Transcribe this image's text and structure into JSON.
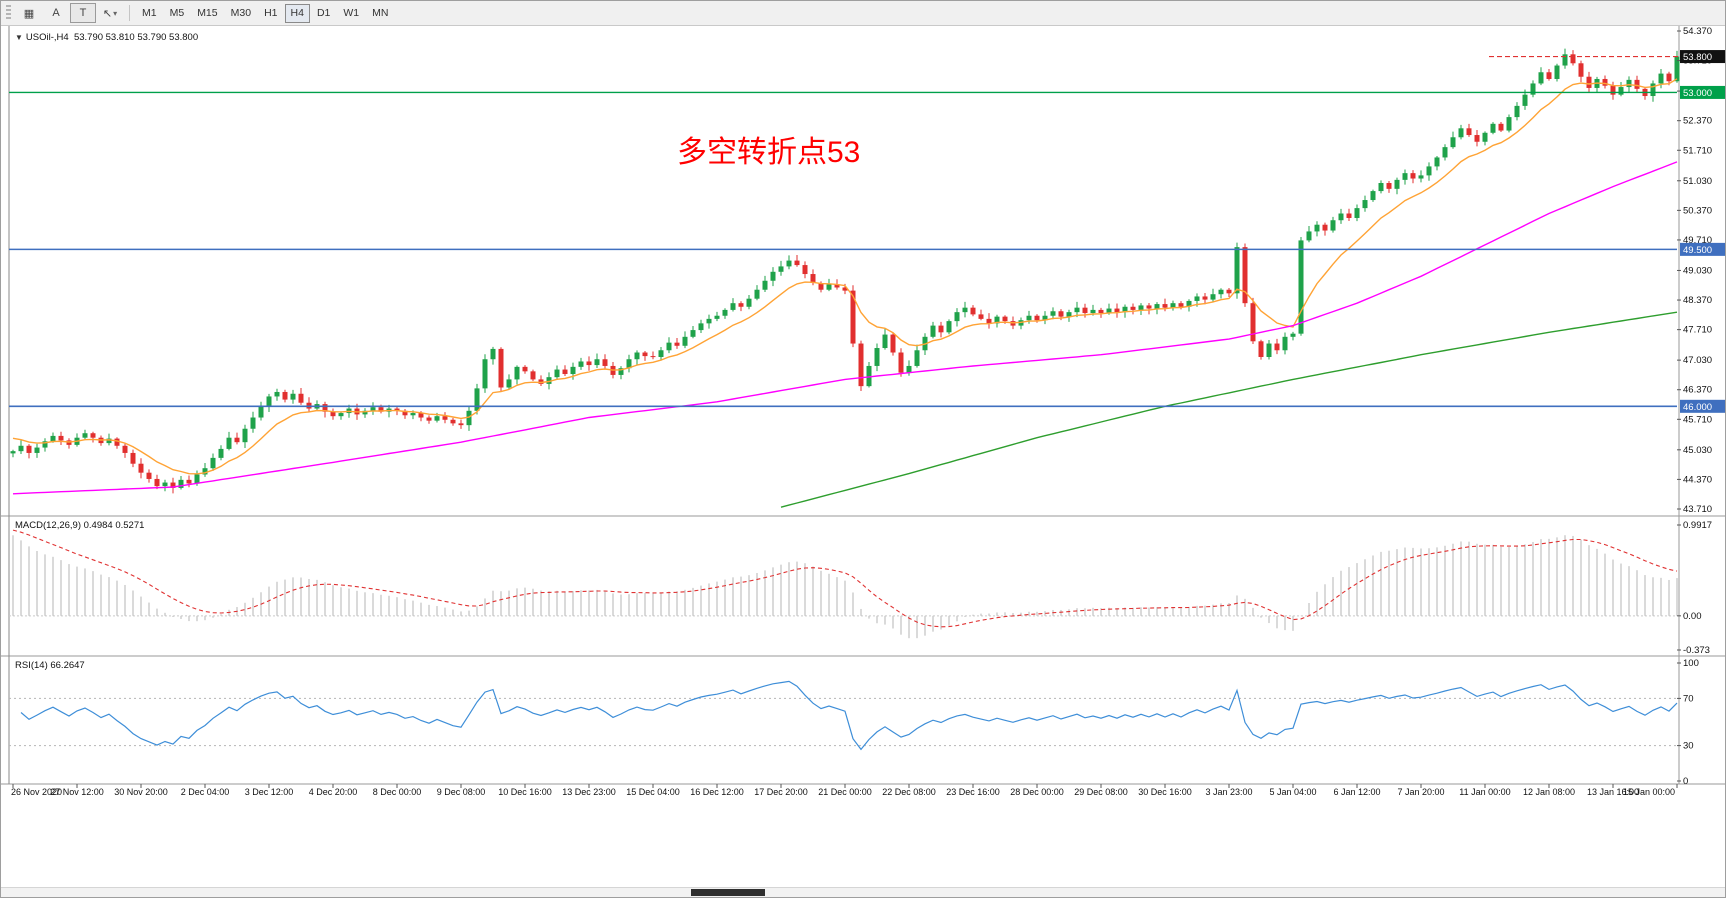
{
  "toolbar": {
    "tools": [
      {
        "name": "chart-grid-icon",
        "label": "▦",
        "boxed": false,
        "caret": false
      },
      {
        "name": "annotation-tool",
        "label": "A",
        "boxed": false,
        "caret": false
      },
      {
        "name": "text-tool",
        "label": "T",
        "boxed": true,
        "caret": false
      },
      {
        "name": "cursor-tool",
        "label": "↖",
        "boxed": false,
        "caret": true
      }
    ],
    "caret_icon": "▾",
    "timeframes": [
      "M1",
      "M5",
      "M15",
      "M30",
      "H1",
      "H4",
      "D1",
      "W1",
      "MN"
    ],
    "selected_timeframe": "H4"
  },
  "quote": {
    "collapse_icon": "▼",
    "text": "USOil-,H4  53.790 53.810 53.790 53.800"
  },
  "annotation": {
    "text": "多空转折点53",
    "color": "#ff0000"
  },
  "indicators": {
    "macd_label": "MACD(12,26,9) 0.4984 0.5271",
    "rsi_label": "RSI(14) 66.2647"
  },
  "price_scale": {
    "labels": [
      54.37,
      53.71,
      53.03,
      52.37,
      51.71,
      51.03,
      50.37,
      49.71,
      49.03,
      48.37,
      47.71,
      47.03,
      46.37,
      45.71,
      45.03,
      44.37,
      43.71
    ],
    "badges": [
      {
        "value": "53.800",
        "bg": "#111111",
        "price": 53.8
      },
      {
        "value": "53.000",
        "bg": "#00a04a",
        "price": 53.0
      },
      {
        "value": "49.500",
        "bg": "#3f6fbf",
        "price": 49.5
      },
      {
        "value": "46.000",
        "bg": "#3f6fbf",
        "price": 46.0
      }
    ]
  },
  "macd_scale": {
    "labels": [
      "0.9917",
      "0.00",
      "-0.373"
    ],
    "max": 0.9917,
    "min": -0.373
  },
  "rsi_scale": {
    "labels": [
      100,
      70,
      30,
      0
    ],
    "levels": [
      70,
      30
    ]
  },
  "time_axis": {
    "labels": [
      "26 Nov 2020",
      "27 Nov 12:00",
      "30 Nov 20:00",
      "2 Dec 04:00",
      "3 Dec 12:00",
      "4 Dec 20:00",
      "8 Dec 00:00",
      "9 Dec 08:00",
      "10 Dec 16:00",
      "13 Dec 23:00",
      "15 Dec 04:00",
      "16 Dec 12:00",
      "17 Dec 20:00",
      "21 Dec 00:00",
      "22 Dec 08:00",
      "23 Dec 16:00",
      "28 Dec 00:00",
      "29 Dec 08:00",
      "30 Dec 16:00",
      "3 Jan 23:00",
      "5 Jan 04:00",
      "6 Jan 12:00",
      "7 Jan 20:00",
      "11 Jan 00:00",
      "12 Jan 08:00",
      "13 Jan 16:00",
      "15 Jan 00:00"
    ]
  },
  "chart_data": {
    "type": "candlestick",
    "symbol": "USOil",
    "timeframe": "H4",
    "title": "USOil-,H4",
    "ohlc_quote": {
      "open": 53.79,
      "high": 53.81,
      "low": 53.79,
      "close": 53.8
    },
    "ylim": [
      43.71,
      54.37
    ],
    "bull_color": "#1fa24a",
    "bear_color": "#e12f2f",
    "closes": [
      45.0,
      45.12,
      44.96,
      45.08,
      45.22,
      45.34,
      45.24,
      45.14,
      45.3,
      45.4,
      45.3,
      45.18,
      45.28,
      45.12,
      44.96,
      44.72,
      44.52,
      44.38,
      44.22,
      44.3,
      44.18,
      44.36,
      44.28,
      44.48,
      44.62,
      44.85,
      45.05,
      45.3,
      45.2,
      45.5,
      45.75,
      46.0,
      46.22,
      46.32,
      46.15,
      46.28,
      46.08,
      45.95,
      46.05,
      45.88,
      45.78,
      45.85,
      45.95,
      45.82,
      45.9,
      45.98,
      45.88,
      45.95,
      45.9,
      45.8,
      45.85,
      45.75,
      45.68,
      45.78,
      45.7,
      45.62,
      45.58,
      45.9,
      46.4,
      47.05,
      47.28,
      46.42,
      46.6,
      46.88,
      46.78,
      46.6,
      46.5,
      46.65,
      46.82,
      46.72,
      46.88,
      47.0,
      46.92,
      47.05,
      46.9,
      46.7,
      46.85,
      47.05,
      47.2,
      47.12,
      47.1,
      47.25,
      47.42,
      47.35,
      47.55,
      47.7,
      47.85,
      47.95,
      48.02,
      48.15,
      48.3,
      48.22,
      48.4,
      48.6,
      48.8,
      49.0,
      49.12,
      49.25,
      49.15,
      48.95,
      48.75,
      48.6,
      48.72,
      48.65,
      48.58,
      47.4,
      46.45,
      46.9,
      47.3,
      47.6,
      47.2,
      46.75,
      46.9,
      47.25,
      47.55,
      47.8,
      47.65,
      47.9,
      48.1,
      48.2,
      48.05,
      47.95,
      47.85,
      48.0,
      47.9,
      47.8,
      47.92,
      48.02,
      47.92,
      48.02,
      48.12,
      48.0,
      48.1,
      48.2,
      48.08,
      48.15,
      48.08,
      48.18,
      48.1,
      48.22,
      48.15,
      48.25,
      48.18,
      48.28,
      48.2,
      48.3,
      48.22,
      48.35,
      48.45,
      48.38,
      48.5,
      48.6,
      48.52,
      49.55,
      48.3,
      47.45,
      47.1,
      47.4,
      47.25,
      47.55,
      47.62,
      49.7,
      49.9,
      50.05,
      49.92,
      50.15,
      50.3,
      50.2,
      50.42,
      50.6,
      50.8,
      50.98,
      50.85,
      51.05,
      51.2,
      51.08,
      51.15,
      51.35,
      51.55,
      51.78,
      52.0,
      52.2,
      52.05,
      51.9,
      52.1,
      52.3,
      52.15,
      52.45,
      52.7,
      52.95,
      53.2,
      53.45,
      53.3,
      53.6,
      53.85,
      53.65,
      53.35,
      53.1,
      53.3,
      53.15,
      52.95,
      53.12,
      53.28,
      53.08,
      52.92,
      53.2,
      53.42,
      53.25,
      53.8
    ],
    "levels": [
      {
        "price": 53.0,
        "color": "#00a04a",
        "width": 1.4
      },
      {
        "price": 49.5,
        "color": "#3f6fbf",
        "width": 1.6
      },
      {
        "price": 46.0,
        "color": "#3f6fbf",
        "width": 1.6
      }
    ],
    "current_price": 53.8,
    "moving_averages": [
      {
        "name": "ma-fast",
        "color": "#ffa335",
        "method": "ema",
        "period": 10,
        "seed_offset": 0.35
      },
      {
        "name": "ma-mid",
        "color": "#ff00ff",
        "method": "anchors",
        "anchors": [
          [
            0,
            44.05
          ],
          [
            20,
            44.2
          ],
          [
            40,
            44.75
          ],
          [
            56,
            45.2
          ],
          [
            72,
            45.75
          ],
          [
            88,
            46.1
          ],
          [
            104,
            46.6
          ],
          [
            120,
            46.9
          ],
          [
            136,
            47.15
          ],
          [
            152,
            47.5
          ],
          [
            160,
            47.8
          ],
          [
            168,
            48.3
          ],
          [
            176,
            48.9
          ],
          [
            184,
            49.6
          ],
          [
            192,
            50.3
          ],
          [
            200,
            50.9
          ],
          [
            208,
            51.45
          ]
        ]
      },
      {
        "name": "ma-slow",
        "color": "#2e9e2e",
        "method": "anchors",
        "anchors": [
          [
            96,
            43.75
          ],
          [
            112,
            44.5
          ],
          [
            128,
            45.3
          ],
          [
            144,
            46.0
          ],
          [
            160,
            46.6
          ],
          [
            176,
            47.15
          ],
          [
            192,
            47.65
          ],
          [
            208,
            48.1
          ]
        ]
      }
    ],
    "macd": {
      "fast": 12,
      "slow": 26,
      "signal_period": 9,
      "current_macd": 0.4984,
      "current_signal": 0.5271,
      "range": [
        -0.373,
        0.9917
      ],
      "histogram_color": "#c2c2c2",
      "signal_color": "#e03232"
    },
    "rsi": {
      "period": 14,
      "current": 66.2647,
      "levels": [
        70,
        30
      ],
      "line_color": "#3e8ed8"
    }
  }
}
